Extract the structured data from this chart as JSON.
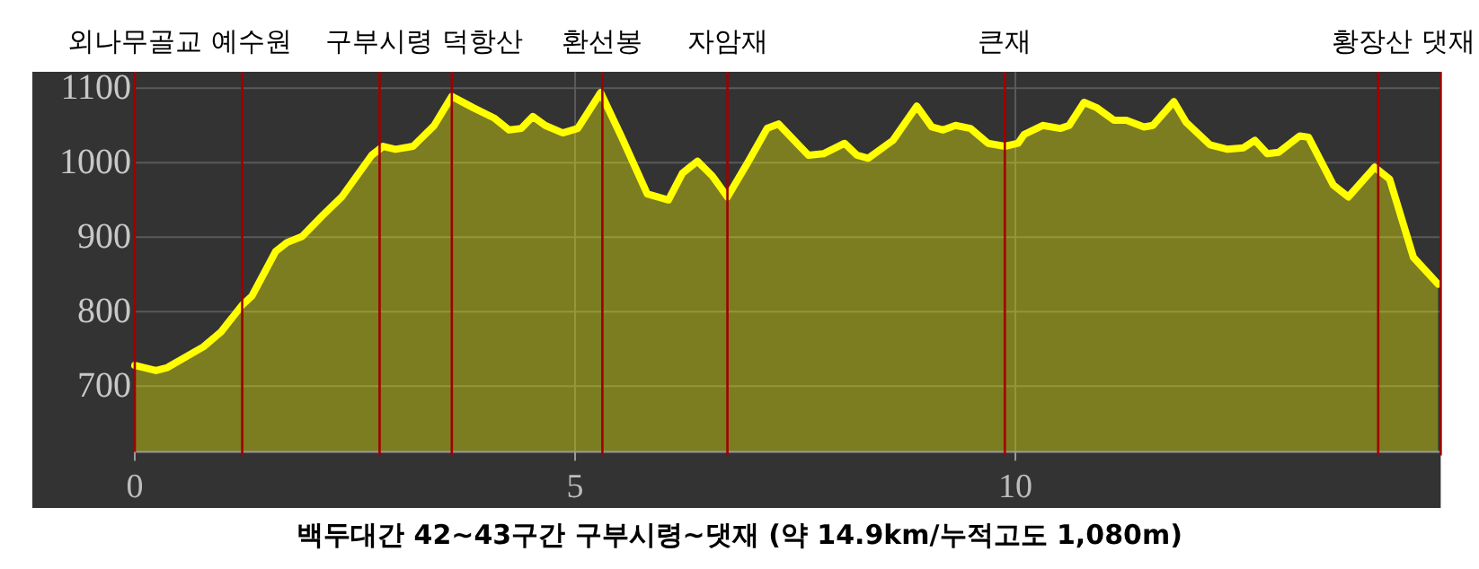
{
  "chart_data": {
    "type": "area",
    "xlabel": "백두대간 42~43구간 구부시령~댓재 (약 14.9km/누적고도 1,080m)",
    "xlim": [
      0,
      14.83
    ],
    "ylim": [
      612,
      1122
    ],
    "xticks": [
      0,
      5,
      10
    ],
    "yticks": [
      700,
      800,
      900,
      1000,
      1100
    ],
    "grid": true,
    "series": [
      {
        "color": "#ffff00",
        "x": [
          0,
          0.24,
          0.37,
          0.78,
          0.98,
          1.22,
          1.33,
          1.6,
          1.73,
          1.9,
          2.14,
          2.35,
          2.69,
          2.82,
          2.96,
          3.16,
          3.4,
          3.6,
          3.84,
          4.08,
          4.25,
          4.39,
          4.52,
          4.66,
          4.86,
          5.03,
          5.29,
          5.53,
          5.82,
          6.06,
          6.22,
          6.39,
          6.56,
          6.73,
          6.97,
          7.18,
          7.31,
          7.65,
          7.82,
          8.06,
          8.2,
          8.33,
          8.61,
          8.88,
          9.05,
          9.18,
          9.32,
          9.49,
          9.69,
          9.88,
          10.03,
          10.1,
          10.31,
          10.51,
          10.61,
          10.78,
          10.92,
          11.12,
          11.26,
          11.46,
          11.56,
          11.8,
          11.94,
          12.21,
          12.41,
          12.59,
          12.72,
          12.86,
          12.99,
          13.23,
          13.33,
          13.61,
          13.78,
          14.08,
          14.25,
          14.52,
          14.8
        ],
        "values": [
          728,
          721,
          725,
          753,
          773,
          809,
          821,
          881,
          893,
          901,
          930,
          954,
          1010,
          1022,
          1018,
          1022,
          1050,
          1089,
          1074,
          1060,
          1044,
          1046,
          1062,
          1050,
          1040,
          1046,
          1094,
          1034,
          958,
          950,
          986,
          1002,
          982,
          954,
          1002,
          1046,
          1052,
          1010,
          1012,
          1026,
          1010,
          1006,
          1030,
          1076,
          1048,
          1044,
          1050,
          1046,
          1026,
          1022,
          1026,
          1038,
          1050,
          1046,
          1050,
          1081,
          1074,
          1057,
          1057,
          1048,
          1050,
          1082,
          1054,
          1024,
          1018,
          1020,
          1030,
          1012,
          1014,
          1036,
          1034,
          970,
          954,
          994,
          978,
          873,
          837
        ]
      }
    ],
    "ref_lines": [
      {
        "axis": "x",
        "value": 0,
        "label": "외나무골교",
        "color": "#a00000"
      },
      {
        "axis": "x",
        "value": 1.22,
        "label": "예수원",
        "color": "#a00000"
      },
      {
        "axis": "x",
        "value": 2.78,
        "label": "구부시령",
        "color": "#a00000"
      },
      {
        "axis": "x",
        "value": 3.6,
        "label": "덕항산",
        "color": "#a00000"
      },
      {
        "axis": "x",
        "value": 5.31,
        "label": "환선봉",
        "color": "#a00000"
      },
      {
        "axis": "x",
        "value": 6.73,
        "label": "자암재",
        "color": "#a00000"
      },
      {
        "axis": "x",
        "value": 9.88,
        "label": "큰재",
        "color": "#a00000"
      },
      {
        "axis": "x",
        "value": 14.12,
        "label": "황장산",
        "color": "#a00000"
      },
      {
        "axis": "x",
        "value": 14.83,
        "label": "댓재",
        "color": "#a00000"
      }
    ]
  }
}
